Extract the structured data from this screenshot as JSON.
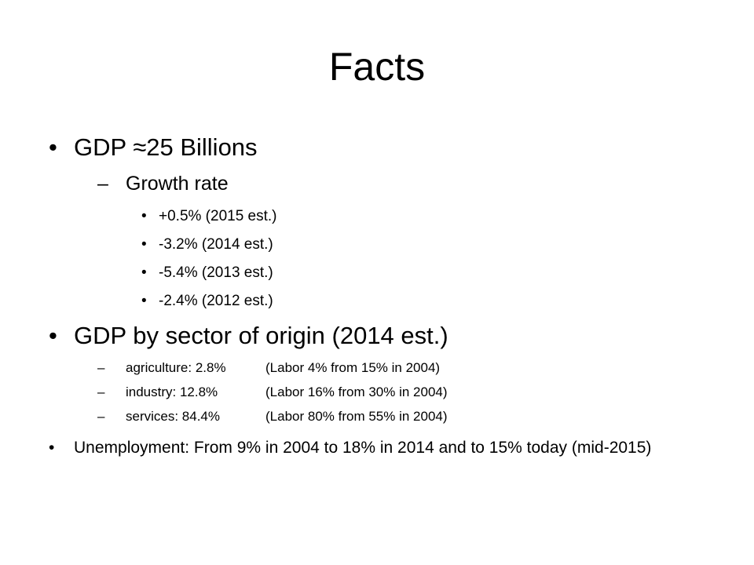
{
  "slide": {
    "title": "Facts",
    "bullet_glyph": "•",
    "dash_glyph": "–",
    "gdp": {
      "text": "GDP ≈25 Billions",
      "growth": {
        "label": "Growth rate",
        "items": [
          "+0.5% (2015 est.)",
          "-3.2% (2014 est.)",
          "-5.4% (2013 est.)",
          "-2.4% (2012 est.)"
        ]
      }
    },
    "sector": {
      "text": "GDP by sector of origin (2014 est.)",
      "items": [
        {
          "sector": "agriculture: 2.8%",
          "labor": "(Labor 4% from 15% in 2004)"
        },
        {
          "sector": "industry: 12.8%",
          "labor": "(Labor 16% from 30% in 2004)"
        },
        {
          "sector": "services: 84.4%",
          "labor": "(Labor 80% from 55% in 2004)"
        }
      ]
    },
    "unemployment": {
      "text": "Unemployment: From 9% in 2004 to 18% in 2014 and to 15% today (mid-2015)"
    }
  }
}
